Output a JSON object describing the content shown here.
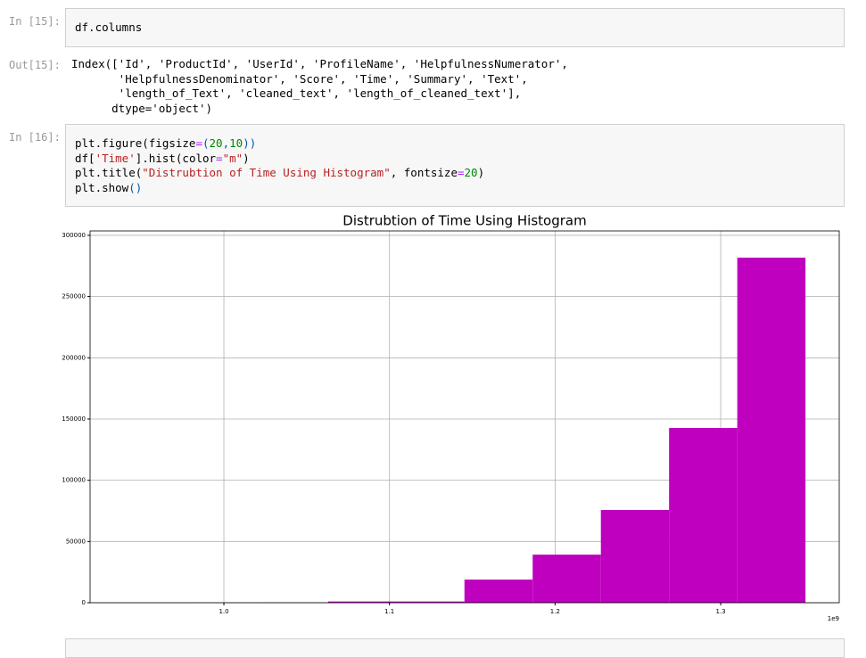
{
  "cells": [
    {
      "prompt": "In [15]:",
      "lines": [
        [
          {
            "text": "df.columns"
          }
        ]
      ]
    },
    {
      "prompt": "Out[15]:",
      "output": [
        "Index(['Id', 'ProductId', 'UserId', 'ProfileName', 'HelpfulnessNumerator',",
        "       'HelpfulnessDenominator', 'Score', 'Time', 'Summary', 'Text',",
        "       'length_of_Text', 'cleaned_text', 'length_of_cleaned_text'],",
        "      dtype='object')"
      ]
    },
    {
      "prompt": "In [16]:",
      "lines": [
        [
          {
            "text": "plt.figure(figsize"
          },
          {
            "text": "=",
            "color": "#aa22ff"
          },
          {
            "text": "(",
            "color": "#0055aa"
          },
          {
            "text": "20",
            "color": "#008800"
          },
          {
            "text": ",",
            "color": "#0055aa"
          },
          {
            "text": "10",
            "color": "#008800"
          },
          {
            "text": "))",
            "color": "#0055aa"
          }
        ],
        [
          {
            "text": "df["
          },
          {
            "text": "'Time'",
            "color": "#ba2121"
          },
          {
            "text": "].hist(color"
          },
          {
            "text": "=",
            "color": "#aa22ff"
          },
          {
            "text": "\"m\"",
            "color": "#ba2121"
          },
          {
            "text": ")"
          }
        ],
        [
          {
            "text": "plt.title("
          },
          {
            "text": "\"Distrubtion of Time Using Histogram\"",
            "color": "#ba2121"
          },
          {
            "text": ", fontsize"
          },
          {
            "text": "=",
            "color": "#aa22ff"
          },
          {
            "text": "20",
            "color": "#008800"
          },
          {
            "text": ")"
          }
        ],
        [
          {
            "text": "plt.show"
          },
          {
            "text": "()",
            "color": "#0055aa"
          }
        ]
      ]
    }
  ],
  "chart_data": {
    "type": "histogram",
    "title": "Distrubtion of Time Using Histogram",
    "bins": [
      939340800,
      980527680,
      1021714560,
      1062901440,
      1104088320,
      1145275200,
      1186462080,
      1227648960,
      1268835840,
      1310022720,
      1351209600
    ],
    "counts": [
      10,
      50,
      200,
      1000,
      1000,
      18900,
      39300,
      75700,
      142700,
      281800
    ],
    "color": "#bf00bf",
    "xlim": [
      919200000,
      1371600000
    ],
    "xticks": [
      {
        "value": 1000000000,
        "label": "1.0"
      },
      {
        "value": 1100000000,
        "label": "1.1"
      },
      {
        "value": 1200000000,
        "label": "1.2"
      },
      {
        "value": 1300000000,
        "label": "1.3"
      }
    ],
    "x_offset_label": "1e9",
    "ylim": [
      0,
      303600
    ],
    "yticks": [
      0,
      50000,
      100000,
      150000,
      200000,
      250000,
      300000
    ],
    "grid": true
  }
}
